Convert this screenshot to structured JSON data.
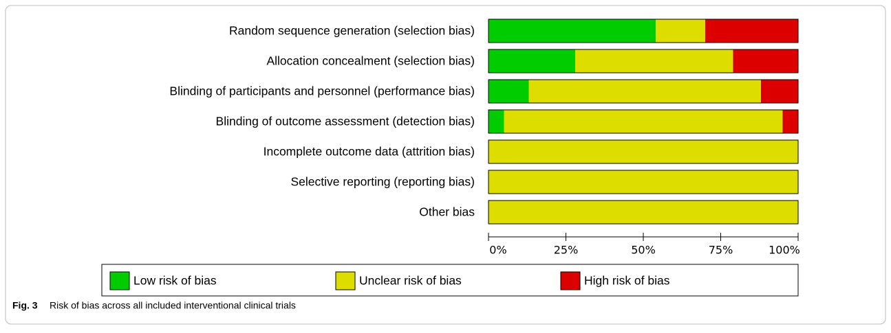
{
  "chart_data": {
    "type": "stacked-bar-horizontal",
    "categories": [
      "Random sequence generation (selection bias)",
      "Allocation concealment (selection bias)",
      "Blinding of participants and personnel (performance bias)",
      "Blinding of outcome assessment (detection bias)",
      "Incomplete outcome data (attrition bias)",
      "Selective reporting (reporting bias)",
      "Other bias"
    ],
    "series": [
      {
        "name": "Low risk of bias",
        "color": "#00cc00",
        "values": [
          54,
          28,
          13,
          5,
          0,
          0,
          0
        ]
      },
      {
        "name": "Unclear risk of bias",
        "color": "#dddd00",
        "values": [
          16,
          51,
          75,
          90,
          100,
          100,
          100
        ]
      },
      {
        "name": "High risk of bias",
        "color": "#dd0000",
        "values": [
          30,
          21,
          12,
          5,
          0,
          0,
          0
        ]
      }
    ],
    "xlim": [
      0,
      100
    ],
    "xticks": [
      {
        "value": 0,
        "label": "0%"
      },
      {
        "value": 25,
        "label": "25%"
      },
      {
        "value": 50,
        "label": "50%"
      },
      {
        "value": 75,
        "label": "75%"
      },
      {
        "value": 100,
        "label": "100%"
      }
    ],
    "caption_label": "Fig. 3",
    "caption": "Risk of bias across all included interventional clinical trials"
  }
}
